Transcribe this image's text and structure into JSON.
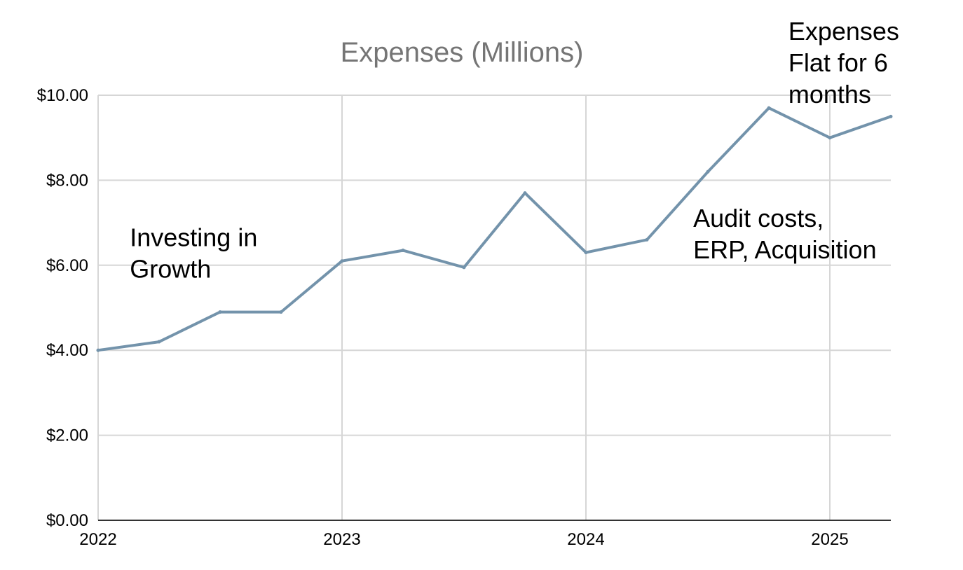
{
  "chart_data": {
    "type": "line",
    "title": "Expenses (Millions)",
    "xlabel": "",
    "ylabel": "",
    "ylim": [
      0,
      10
    ],
    "xlim": [
      2022,
      2025.25
    ],
    "grid": true,
    "legend": "none",
    "y_ticks": [
      {
        "value": 0,
        "label": "$0.00"
      },
      {
        "value": 2,
        "label": "$2.00"
      },
      {
        "value": 4,
        "label": "$4.00"
      },
      {
        "value": 6,
        "label": "$6.00"
      },
      {
        "value": 8,
        "label": "$8.00"
      },
      {
        "value": 10,
        "label": "$10.00"
      }
    ],
    "x_ticks": [
      {
        "value": 2022,
        "label": "2022"
      },
      {
        "value": 2023,
        "label": "2023"
      },
      {
        "value": 2024,
        "label": "2024"
      },
      {
        "value": 2025,
        "label": "2025"
      }
    ],
    "series": [
      {
        "name": "Expenses",
        "color": "#7393ab",
        "x": [
          2022,
          2022.25,
          2022.5,
          2022.75,
          2023,
          2023.25,
          2023.5,
          2023.75,
          2024,
          2024.25,
          2024.5,
          2024.75,
          2025,
          2025.25
        ],
        "values": [
          4.0,
          4.2,
          4.9,
          4.9,
          6.1,
          6.35,
          5.95,
          7.7,
          6.3,
          6.6,
          8.2,
          9.7,
          9.0,
          9.5
        ]
      }
    ],
    "annotations": [
      {
        "lines": [
          "Investing in",
          "Growth"
        ],
        "x": 2022.13,
        "y": 6.45
      },
      {
        "lines": [
          "Audit costs,",
          "ERP, Acquisition"
        ],
        "x": 2024.44,
        "y": 6.9
      },
      {
        "lines": [
          "Expenses",
          "Flat for 6",
          "months"
        ],
        "x": 2024.83,
        "y": 11.3
      }
    ]
  },
  "colors": {
    "line": "#7393ab",
    "grid": "#d6d6d6",
    "axis": "#333333",
    "title": "#757575"
  }
}
